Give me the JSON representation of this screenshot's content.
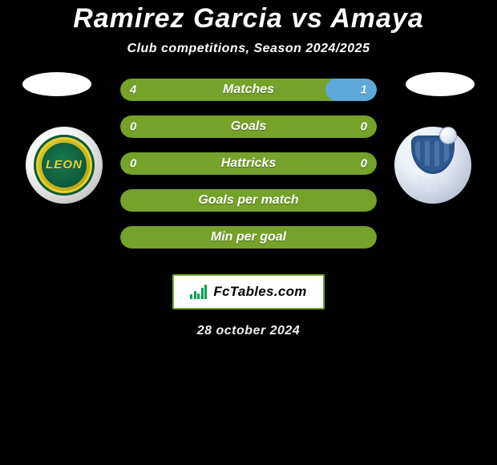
{
  "colors": {
    "green": "#76a12a",
    "blue": "#5ea7d9",
    "badge_border": "#76a12a",
    "title": "#ffffff"
  },
  "title": {
    "text": "Ramirez Garcia vs Amaya",
    "fontsize": 34
  },
  "subtitle": {
    "text": "Club competitions, Season 2024/2025",
    "fontsize": 16
  },
  "left_team": {
    "short": "LEON"
  },
  "right_team": {
    "short": "Puebla",
    "sub": "F.C"
  },
  "bars": {
    "label_fontsize": 16,
    "value_fontsize": 15,
    "height": 28,
    "items": [
      {
        "label": "Matches",
        "left": "4",
        "right": "1",
        "left_pct": 80,
        "right_pct": 20
      },
      {
        "label": "Goals",
        "left": "0",
        "right": "0",
        "left_pct": 0,
        "right_pct": 0
      },
      {
        "label": "Hattricks",
        "left": "0",
        "right": "0",
        "left_pct": 0,
        "right_pct": 0
      },
      {
        "label": "Goals per match",
        "left": "",
        "right": "",
        "left_pct": 0,
        "right_pct": 0
      },
      {
        "label": "Min per goal",
        "left": "",
        "right": "",
        "left_pct": 0,
        "right_pct": 0
      }
    ]
  },
  "logo": {
    "text": "FcTables.com",
    "fontsize": 17
  },
  "date": {
    "text": "28 october 2024",
    "fontsize": 16
  }
}
